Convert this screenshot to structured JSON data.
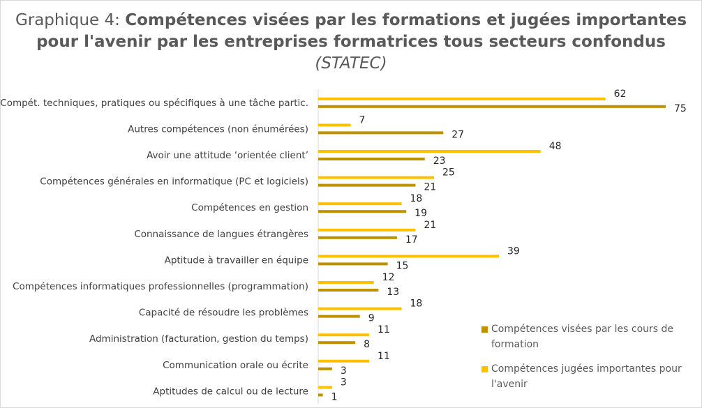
{
  "title": {
    "prefix": "Graphique 4: ",
    "main": "Compétences visées par les formations et jugées importantes pour l'avenir par les entreprises formatrices tous secteurs confondus",
    "source": "(STATEC)"
  },
  "colors": {
    "visees": "#bf9000",
    "avenir": "#ffc000"
  },
  "chart_data": {
    "type": "bar",
    "orientation": "horizontal",
    "categories": [
      "Compét. techniques, pratiques ou spécifiques à une tâche partic.",
      "Autres compétences (non énumérées)",
      "Avoir une attitude ‘orientée client’",
      "Compétences générales en informatique (PC et logiciels)",
      "Compétences en gestion",
      "Connaissance de langues étrangères",
      "Aptitude à travailler en équipe",
      "Compétences informatiques professionnelles (programmation)",
      "Capacité de résoudre les problèmes",
      "Administration (facturation, gestion du temps)",
      "Communication orale ou écrite",
      "Aptitudes de calcul ou de lecture"
    ],
    "series": [
      {
        "name": "Compétences jugées importantes pour l'avenir",
        "values": [
          62,
          7,
          48,
          25,
          18,
          21,
          39,
          12,
          18,
          11,
          11,
          3
        ]
      },
      {
        "name": "Compétences visées par les cours de formation",
        "values": [
          75,
          27,
          23,
          21,
          19,
          17,
          15,
          13,
          9,
          8,
          3,
          1
        ]
      }
    ],
    "xlim": [
      0,
      75
    ],
    "data_labels": true,
    "legend_position": "right"
  }
}
